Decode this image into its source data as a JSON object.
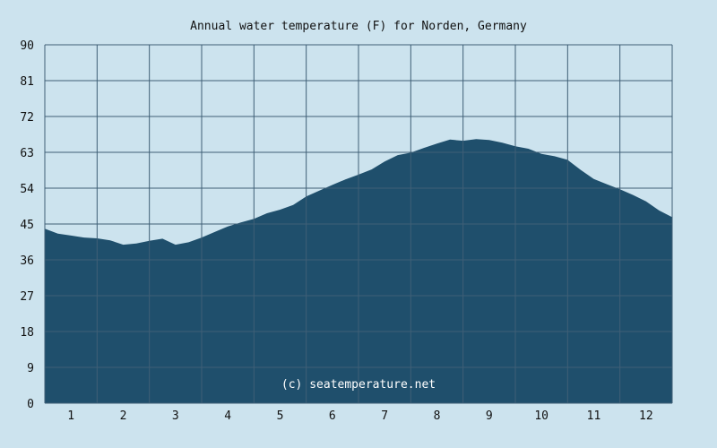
{
  "chart_data": {
    "type": "area",
    "title": "Annual water temperature (F) for Norden, Germany",
    "credit": "(c) seatemperature.net",
    "xlabel": "",
    "ylabel": "",
    "ylim": [
      0,
      90
    ],
    "yticks": [
      0,
      9,
      18,
      27,
      36,
      45,
      54,
      63,
      72,
      81,
      90
    ],
    "xlim": [
      0,
      12
    ],
    "x_tick_labels": [
      "1",
      "2",
      "3",
      "4",
      "5",
      "6",
      "7",
      "8",
      "9",
      "10",
      "11",
      "12"
    ],
    "grid": true,
    "x": [
      0,
      0.25,
      0.5,
      0.75,
      1,
      1.25,
      1.5,
      1.75,
      2,
      2.25,
      2.5,
      2.75,
      3,
      3.25,
      3.5,
      3.75,
      4,
      4.25,
      4.5,
      4.75,
      5,
      5.25,
      5.5,
      5.75,
      6,
      6.25,
      6.5,
      6.75,
      7,
      7.25,
      7.5,
      7.75,
      8,
      8.25,
      8.5,
      8.75,
      9,
      9.25,
      9.5,
      9.75,
      10,
      10.25,
      10.5,
      10.75,
      11,
      11.25,
      11.5,
      11.75,
      12
    ],
    "values": [
      43.8,
      42.6,
      42.1,
      41.6,
      41.4,
      40.9,
      39.8,
      40.1,
      40.8,
      41.3,
      39.8,
      40.4,
      41.6,
      43.0,
      44.4,
      45.4,
      46.3,
      47.7,
      48.6,
      49.8,
      51.9,
      53.4,
      54.8,
      56.2,
      57.4,
      58.7,
      60.7,
      62.3,
      62.9,
      64.1,
      65.2,
      66.2,
      65.9,
      66.3,
      66.1,
      65.4,
      64.5,
      63.9,
      62.6,
      62.0,
      61.1,
      58.6,
      56.3,
      55.0,
      53.7,
      52.3,
      50.7,
      48.4,
      46.7
    ]
  },
  "colors": {
    "background": "#cce3ee",
    "area_fill": "#1f4f6c",
    "grid_line": "#3f5f76"
  }
}
